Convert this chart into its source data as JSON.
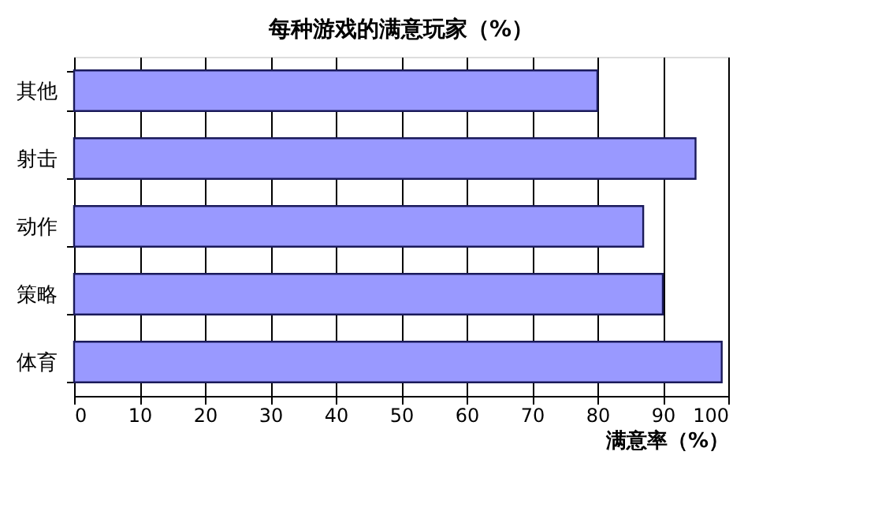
{
  "chart_data": {
    "type": "bar",
    "orientation": "horizontal",
    "title": "每种游戏的满意玩家（%）",
    "xlabel": "满意率（%）",
    "categories": [
      "其他",
      "射击",
      "动作",
      "策略",
      "体育"
    ],
    "values": [
      80,
      95,
      87,
      90,
      99
    ],
    "color": "#9999ff",
    "xlim": [
      0,
      100
    ],
    "xticks": [
      0,
      10,
      20,
      30,
      40,
      50,
      60,
      70,
      80,
      90,
      100
    ],
    "grid": "x"
  }
}
